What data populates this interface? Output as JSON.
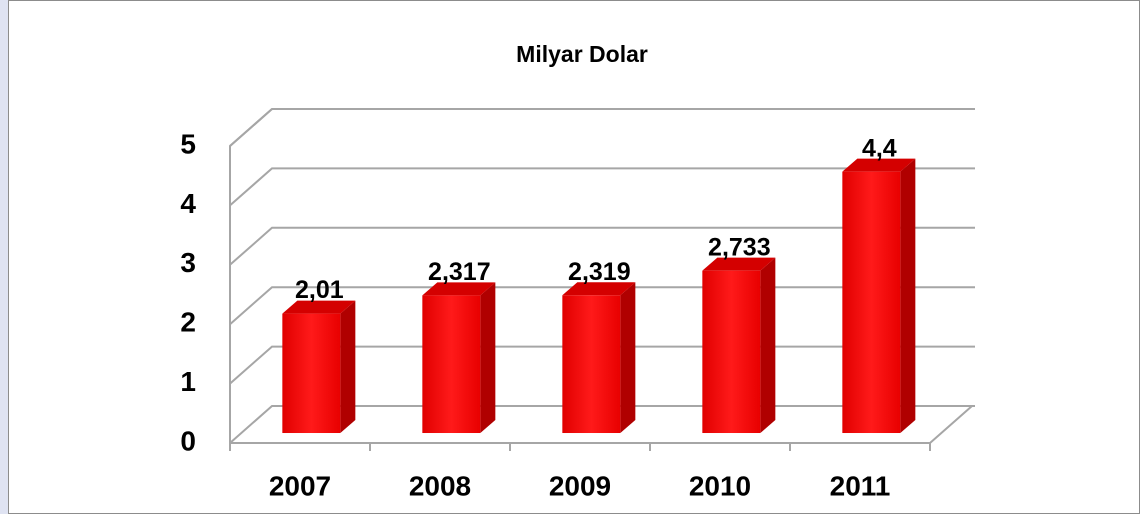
{
  "chart_data": {
    "type": "bar",
    "title": "Milyar Dolar",
    "categories": [
      "2007",
      "2008",
      "2009",
      "2010",
      "2011"
    ],
    "values": [
      2.01,
      2.317,
      2.319,
      2.733,
      4.4
    ],
    "value_labels": [
      "2,01",
      "2,317",
      "2,319",
      "2,733",
      "4,4"
    ],
    "color": "#ff0000",
    "ylim": [
      0,
      5
    ],
    "yticks": [
      0,
      1,
      2,
      3,
      4,
      5
    ],
    "grid": true
  }
}
